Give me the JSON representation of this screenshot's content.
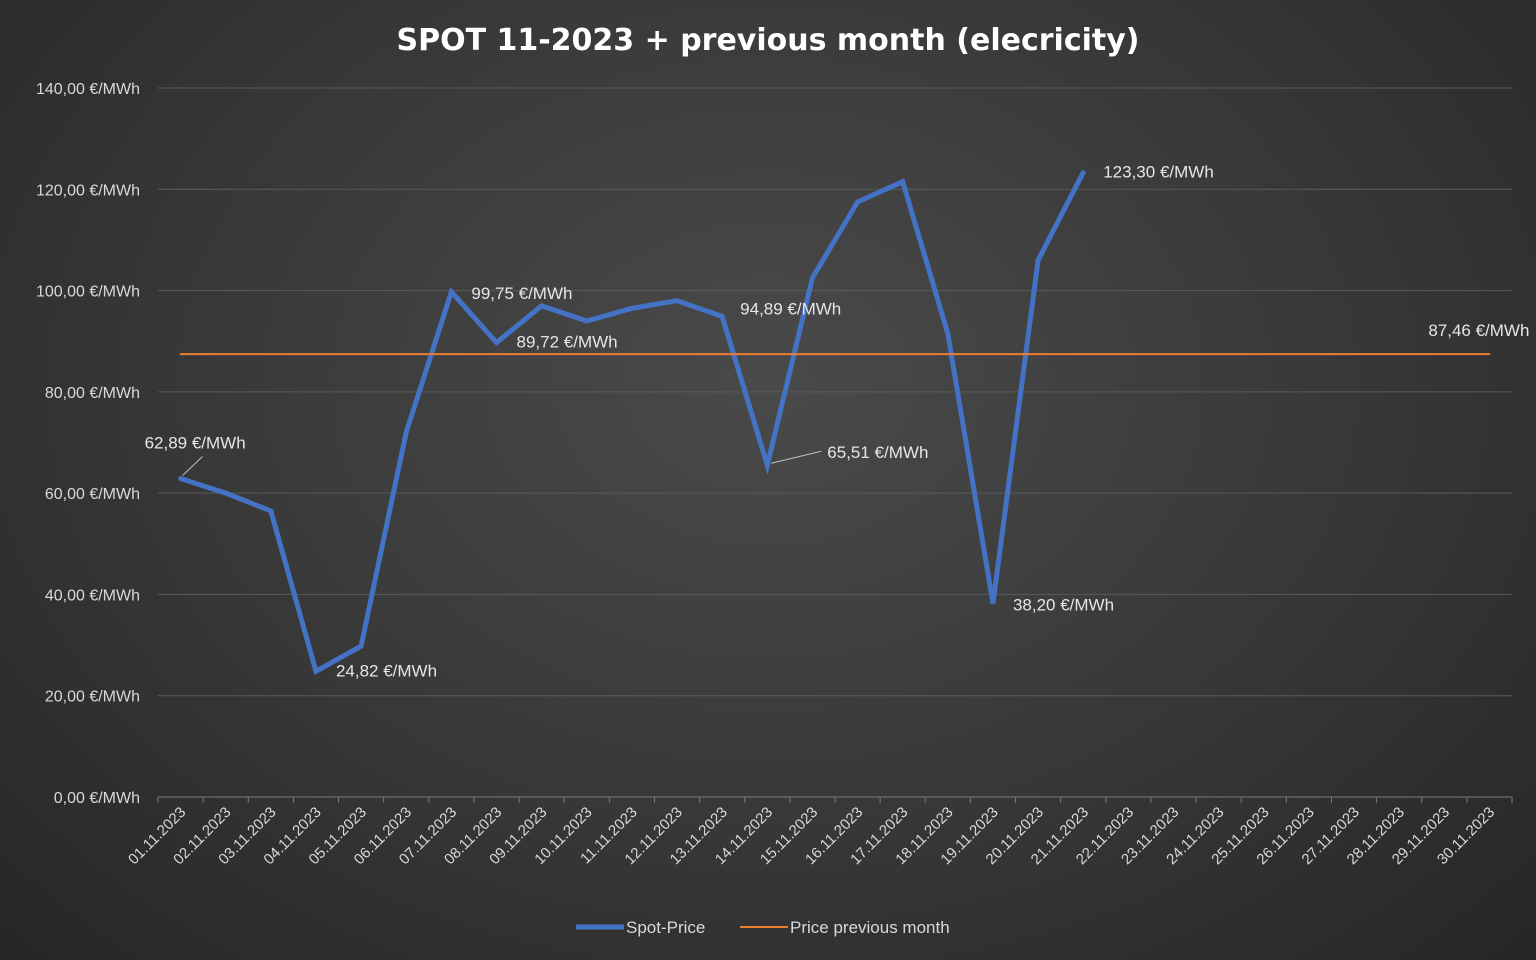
{
  "chart_data": {
    "type": "line",
    "title": "SPOT 11-2023 + previous month (elecricity)",
    "ylim": [
      0,
      140
    ],
    "yticks": [
      "0,00 €/MWh",
      "20,00 €/MWh",
      "40,00 €/MWh",
      "60,00 €/MWh",
      "80,00 €/MWh",
      "100,00 €/MWh",
      "120,00 €/MWh",
      "140,00 €/MWh"
    ],
    "grid": true,
    "legend_position": "bottom",
    "categories": [
      "01.11.2023",
      "02.11.2023",
      "03.11.2023",
      "04.11.2023",
      "05.11.2023",
      "06.11.2023",
      "07.11.2023",
      "08.11.2023",
      "09.11.2023",
      "10.11.2023",
      "11.11.2023",
      "12.11.2023",
      "13.11.2023",
      "14.11.2023",
      "15.11.2023",
      "16.11.2023",
      "17.11.2023",
      "18.11.2023",
      "19.11.2023",
      "20.11.2023",
      "21.11.2023",
      "22.11.2023",
      "23.11.2023",
      "24.11.2023",
      "25.11.2023",
      "26.11.2023",
      "27.11.2023",
      "28.11.2023",
      "29.11.2023",
      "30.11.2023"
    ],
    "series": [
      {
        "name": "Spot-Price",
        "color": "#4472c4",
        "values": [
          62.89,
          60.0,
          56.5,
          24.82,
          29.8,
          72.0,
          99.75,
          89.72,
          97.0,
          94.0,
          96.5,
          98.0,
          94.89,
          65.51,
          102.5,
          117.5,
          121.5,
          91.5,
          38.2,
          106.0,
          123.3,
          null,
          null,
          null,
          null,
          null,
          null,
          null,
          null,
          null
        ]
      },
      {
        "name": "Price previous month",
        "color": "#ed7d31",
        "values": [
          87.46,
          87.46,
          87.46,
          87.46,
          87.46,
          87.46,
          87.46,
          87.46,
          87.46,
          87.46,
          87.46,
          87.46,
          87.46,
          87.46,
          87.46,
          87.46,
          87.46,
          87.46,
          87.46,
          87.46,
          87.46,
          87.46,
          87.46,
          87.46,
          87.46,
          87.46,
          87.46,
          87.46,
          87.46,
          87.46
        ]
      }
    ],
    "data_labels": [
      {
        "series": 0,
        "index": 0,
        "text": "62,89 €/MWh"
      },
      {
        "series": 0,
        "index": 3,
        "text": "24,82 €/MWh"
      },
      {
        "series": 0,
        "index": 6,
        "text": "99,75 €/MWh"
      },
      {
        "series": 0,
        "index": 7,
        "text": "89,72 €/MWh"
      },
      {
        "series": 0,
        "index": 12,
        "text": "94,89 €/MWh"
      },
      {
        "series": 0,
        "index": 13,
        "text": "65,51 €/MWh"
      },
      {
        "series": 0,
        "index": 18,
        "text": "38,20 €/MWh"
      },
      {
        "series": 0,
        "index": 20,
        "text": "123,30 €/MWh"
      },
      {
        "series": 1,
        "index": 29,
        "text": "87,46 €/MWh"
      }
    ]
  }
}
